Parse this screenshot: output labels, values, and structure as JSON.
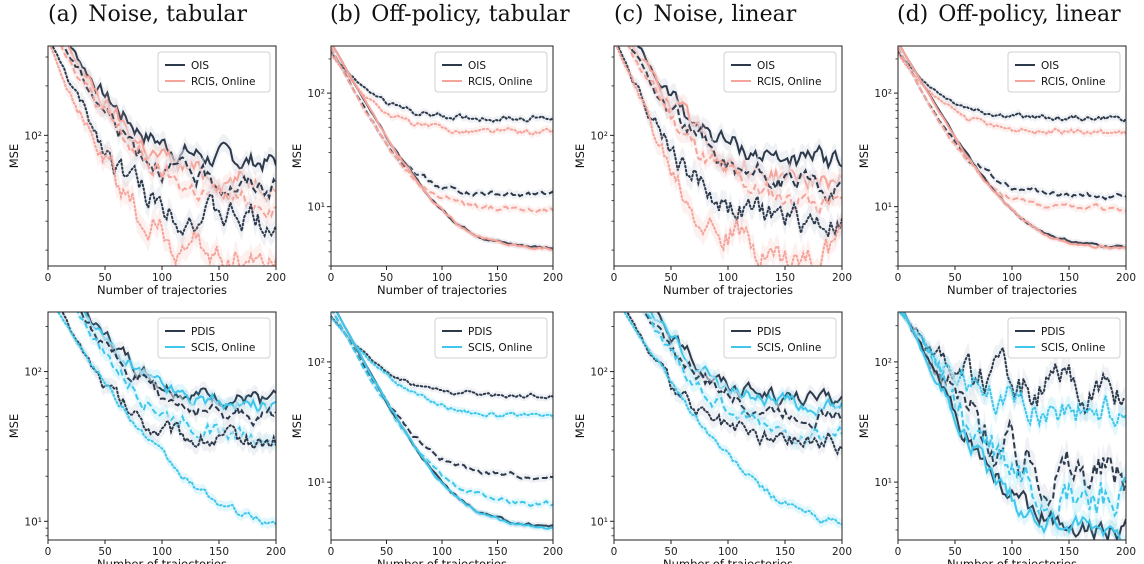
{
  "figure": {
    "columns": [
      {
        "label": "(a)",
        "title": "Noise, tabular"
      },
      {
        "label": "(b)",
        "title": "Off-policy, tabular"
      },
      {
        "label": "(c)",
        "title": "Noise, linear"
      },
      {
        "label": "(d)",
        "title": "Off-policy, linear"
      }
    ]
  },
  "colors": {
    "dark": "#2d3a4b",
    "salmon": "#f4a49a",
    "cyan": "#3fc6ea",
    "band": "#e2e6ec"
  },
  "chart_data": [
    {
      "id": "a1",
      "type": "line",
      "scale": "log",
      "xlabel": "Number of trajectories",
      "ylabel": "MSE",
      "xlim": [
        0,
        200
      ],
      "ylim": [
        16,
        350
      ],
      "xticks": [
        0,
        50,
        100,
        150,
        200
      ],
      "xticklabels": [
        "0",
        "50",
        "100",
        "150",
        "200"
      ],
      "yticks": [
        100
      ],
      "yticklabels": [
        "10²"
      ],
      "legend": {
        "position": "top-right",
        "entries": [
          {
            "name": "OIS",
            "color": "dark"
          },
          {
            "name": "RCIS, Online",
            "color": "salmon"
          }
        ]
      },
      "series": [
        {
          "color": "dark",
          "dash": "solid",
          "start": 600,
          "plateau": 68,
          "k": 0.032,
          "noise": 0.05
        },
        {
          "color": "salmon",
          "dash": "solid",
          "start": 560,
          "plateau": 52,
          "k": 0.032,
          "noise": 0.05
        },
        {
          "color": "dark",
          "dash": "dashed",
          "start": 520,
          "plateau": 48,
          "k": 0.032,
          "noise": 0.05
        },
        {
          "color": "salmon",
          "dash": "dashed",
          "start": 500,
          "plateau": 38,
          "k": 0.032,
          "noise": 0.05
        },
        {
          "color": "dark",
          "dash": "dotted",
          "start": 400,
          "plateau": 30,
          "k": 0.038,
          "noise": 0.07
        },
        {
          "color": "salmon",
          "dash": "dotted",
          "start": 380,
          "plateau": 18,
          "k": 0.04,
          "noise": 0.08
        }
      ]
    },
    {
      "id": "b1",
      "type": "line",
      "scale": "log",
      "xlabel": "Number of trajectories",
      "ylabel": "MSE",
      "xlim": [
        0,
        200
      ],
      "ylim": [
        3,
        260
      ],
      "xticks": [
        0,
        50,
        100,
        150,
        200
      ],
      "xticklabels": [
        "0",
        "50",
        "100",
        "150",
        "200"
      ],
      "yticks": [
        10,
        100
      ],
      "yticklabels": [
        "10¹",
        "10²"
      ],
      "legend": {
        "position": "top-right",
        "entries": [
          {
            "name": "OIS",
            "color": "dark"
          },
          {
            "name": "RCIS, Online",
            "color": "salmon"
          }
        ]
      },
      "series": [
        {
          "color": "dark",
          "dash": "dotted",
          "start": 230,
          "plateau": 60,
          "k": 0.04,
          "noise": 0.02
        },
        {
          "color": "salmon",
          "dash": "dotted",
          "start": 220,
          "plateau": 45,
          "k": 0.04,
          "noise": 0.02
        },
        {
          "color": "dark",
          "dash": "dashed",
          "start": 250,
          "plateau": 12.5,
          "k": 0.045,
          "noise": 0.02
        },
        {
          "color": "salmon",
          "dash": "dashed",
          "start": 250,
          "plateau": 9.5,
          "k": 0.045,
          "noise": 0.02
        },
        {
          "color": "dark",
          "dash": "solid",
          "start": 280,
          "plateau": 4.3,
          "k": 0.04,
          "noise": 0.01
        },
        {
          "color": "salmon",
          "dash": "solid",
          "start": 280,
          "plateau": 4.2,
          "k": 0.04,
          "noise": 0.01
        }
      ]
    },
    {
      "id": "c1",
      "type": "line",
      "scale": "log",
      "xlabel": "Number of trajectories",
      "ylabel": "MSE",
      "xlim": [
        0,
        200
      ],
      "ylim": [
        16,
        350
      ],
      "xticks": [
        0,
        50,
        100,
        150,
        200
      ],
      "xticklabels": [
        "0",
        "50",
        "100",
        "150",
        "200"
      ],
      "yticks": [
        100
      ],
      "yticklabels": [
        "10²"
      ],
      "legend": {
        "position": "top-right",
        "entries": [
          {
            "name": "OIS",
            "color": "dark"
          },
          {
            "name": "RCIS, Online",
            "color": "salmon"
          }
        ]
      },
      "series": [
        {
          "color": "dark",
          "dash": "solid",
          "start": 600,
          "plateau": 68,
          "k": 0.032,
          "noise": 0.05
        },
        {
          "color": "salmon",
          "dash": "solid",
          "start": 560,
          "plateau": 52,
          "k": 0.032,
          "noise": 0.05
        },
        {
          "color": "dark",
          "dash": "dashed",
          "start": 520,
          "plateau": 48,
          "k": 0.032,
          "noise": 0.05
        },
        {
          "color": "salmon",
          "dash": "dashed",
          "start": 500,
          "plateau": 38,
          "k": 0.032,
          "noise": 0.05
        },
        {
          "color": "dark",
          "dash": "dotted",
          "start": 400,
          "plateau": 30,
          "k": 0.038,
          "noise": 0.07
        },
        {
          "color": "salmon",
          "dash": "dotted",
          "start": 380,
          "plateau": 18,
          "k": 0.04,
          "noise": 0.08
        }
      ]
    },
    {
      "id": "d1",
      "type": "line",
      "scale": "log",
      "xlabel": "Number of trajectories",
      "ylabel": "MSE",
      "xlim": [
        0,
        200
      ],
      "ylim": [
        3,
        260
      ],
      "xticks": [
        0,
        50,
        100,
        150,
        200
      ],
      "xticklabels": [
        "0",
        "50",
        "100",
        "150",
        "200"
      ],
      "yticks": [
        10,
        100
      ],
      "yticklabels": [
        "10¹",
        "10²"
      ],
      "legend": {
        "position": "top-right",
        "entries": [
          {
            "name": "OIS",
            "color": "dark"
          },
          {
            "name": "RCIS, Online",
            "color": "salmon"
          }
        ]
      },
      "series": [
        {
          "color": "dark",
          "dash": "dotted",
          "start": 230,
          "plateau": 60,
          "k": 0.04,
          "noise": 0.02
        },
        {
          "color": "salmon",
          "dash": "dotted",
          "start": 220,
          "plateau": 45,
          "k": 0.04,
          "noise": 0.02
        },
        {
          "color": "dark",
          "dash": "dashed",
          "start": 250,
          "plateau": 12.5,
          "k": 0.045,
          "noise": 0.02
        },
        {
          "color": "salmon",
          "dash": "dashed",
          "start": 250,
          "plateau": 9.5,
          "k": 0.045,
          "noise": 0.02
        },
        {
          "color": "dark",
          "dash": "solid",
          "start": 280,
          "plateau": 4.3,
          "k": 0.04,
          "noise": 0.01
        },
        {
          "color": "salmon",
          "dash": "solid",
          "start": 280,
          "plateau": 4.2,
          "k": 0.04,
          "noise": 0.01
        }
      ]
    },
    {
      "id": "a2",
      "type": "line",
      "scale": "log",
      "xlabel": "Number of trajectories",
      "ylabel": "MSE",
      "xlim": [
        0,
        200
      ],
      "ylim": [
        7.5,
        250
      ],
      "xticks": [
        0,
        50,
        100,
        150,
        200
      ],
      "xticklabels": [
        "0",
        "50",
        "100",
        "150",
        "200"
      ],
      "yticks": [
        10,
        100
      ],
      "yticklabels": [
        "10¹",
        "10²"
      ],
      "legend": {
        "position": "top-right",
        "entries": [
          {
            "name": "PDIS",
            "color": "dark"
          },
          {
            "name": "SCIS, Online",
            "color": "cyan"
          }
        ]
      },
      "series": [
        {
          "color": "dark",
          "dash": "solid",
          "start": 650,
          "plateau": 63,
          "k": 0.033,
          "noise": 0.04
        },
        {
          "color": "cyan",
          "dash": "solid",
          "start": 620,
          "plateau": 57,
          "k": 0.033,
          "noise": 0.04
        },
        {
          "color": "dark",
          "dash": "dashed",
          "start": 560,
          "plateau": 50,
          "k": 0.033,
          "noise": 0.04
        },
        {
          "color": "cyan",
          "dash": "dashed",
          "start": 540,
          "plateau": 36,
          "k": 0.033,
          "noise": 0.04
        },
        {
          "color": "dark",
          "dash": "dotted",
          "start": 380,
          "plateau": 34,
          "k": 0.04,
          "noise": 0.05
        },
        {
          "color": "cyan",
          "dash": "dotted",
          "start": 320,
          "plateau": 8.5,
          "k": 0.028,
          "noise": 0.02
        }
      ]
    },
    {
      "id": "b2",
      "type": "line",
      "scale": "log",
      "xlabel": "Number of trajectories",
      "ylabel": "MSE",
      "xlim": [
        0,
        200
      ],
      "ylim": [
        3.3,
        260
      ],
      "xticks": [
        0,
        50,
        100,
        150,
        200
      ],
      "xticklabels": [
        "0",
        "50",
        "100",
        "150",
        "200"
      ],
      "yticks": [
        10,
        100
      ],
      "yticklabels": [
        "10¹",
        "10²"
      ],
      "legend": {
        "position": "top-right",
        "entries": [
          {
            "name": "PDIS",
            "color": "dark"
          },
          {
            "name": "SCIS, Online",
            "color": "cyan"
          }
        ]
      },
      "series": [
        {
          "color": "dark",
          "dash": "dotted",
          "start": 240,
          "plateau": 52,
          "k": 0.035,
          "noise": 0.015
        },
        {
          "color": "cyan",
          "dash": "dotted",
          "start": 235,
          "plateau": 34,
          "k": 0.03,
          "noise": 0.015
        },
        {
          "color": "dark",
          "dash": "dashed",
          "start": 280,
          "plateau": 11,
          "k": 0.04,
          "noise": 0.015
        },
        {
          "color": "cyan",
          "dash": "dashed",
          "start": 280,
          "plateau": 6.5,
          "k": 0.04,
          "noise": 0.015
        },
        {
          "color": "dark",
          "dash": "solid",
          "start": 320,
          "plateau": 4.2,
          "k": 0.04,
          "noise": 0.01
        },
        {
          "color": "cyan",
          "dash": "solid",
          "start": 320,
          "plateau": 4.1,
          "k": 0.04,
          "noise": 0.01
        }
      ]
    },
    {
      "id": "c2",
      "type": "line",
      "scale": "log",
      "xlabel": "Number of trajectories",
      "ylabel": "MSE",
      "xlim": [
        0,
        200
      ],
      "ylim": [
        7.5,
        250
      ],
      "xticks": [
        0,
        50,
        100,
        150,
        200
      ],
      "xticklabels": [
        "0",
        "50",
        "100",
        "150",
        "200"
      ],
      "yticks": [
        10,
        100
      ],
      "yticklabels": [
        "10¹",
        "10²"
      ],
      "legend": {
        "position": "top-right",
        "entries": [
          {
            "name": "PDIS",
            "color": "dark"
          },
          {
            "name": "SCIS, Online",
            "color": "cyan"
          }
        ]
      },
      "series": [
        {
          "color": "dark",
          "dash": "solid",
          "start": 650,
          "plateau": 63,
          "k": 0.033,
          "noise": 0.04
        },
        {
          "color": "cyan",
          "dash": "solid",
          "start": 620,
          "plateau": 57,
          "k": 0.033,
          "noise": 0.04
        },
        {
          "color": "dark",
          "dash": "dashed",
          "start": 560,
          "plateau": 50,
          "k": 0.033,
          "noise": 0.04
        },
        {
          "color": "cyan",
          "dash": "dashed",
          "start": 540,
          "plateau": 36,
          "k": 0.033,
          "noise": 0.04
        },
        {
          "color": "dark",
          "dash": "dotted",
          "start": 380,
          "plateau": 34,
          "k": 0.04,
          "noise": 0.05
        },
        {
          "color": "cyan",
          "dash": "dotted",
          "start": 320,
          "plateau": 8.5,
          "k": 0.028,
          "noise": 0.02
        }
      ]
    },
    {
      "id": "d2",
      "type": "line",
      "scale": "log",
      "xlabel": "Number of trajectories",
      "ylabel": "MSE",
      "xlim": [
        0,
        200
      ],
      "ylim": [
        3.3,
        260
      ],
      "xticks": [
        0,
        50,
        100,
        150,
        200
      ],
      "xticklabels": [
        "0",
        "50",
        "100",
        "150",
        "200"
      ],
      "yticks": [
        10,
        100
      ],
      "yticklabels": [
        "10¹",
        "10²"
      ],
      "legend": {
        "position": "top-right",
        "entries": [
          {
            "name": "PDIS",
            "color": "dark"
          },
          {
            "name": "SCIS, Online",
            "color": "cyan"
          }
        ]
      },
      "series": [
        {
          "color": "dark",
          "dash": "dotted",
          "start": 280,
          "plateau": 58,
          "k": 0.035,
          "noise": 0.12
        },
        {
          "color": "cyan",
          "dash": "dotted",
          "start": 270,
          "plateau": 40,
          "k": 0.035,
          "noise": 0.1
        },
        {
          "color": "dark",
          "dash": "dashed",
          "start": 300,
          "plateau": 11,
          "k": 0.04,
          "noise": 0.15
        },
        {
          "color": "cyan",
          "dash": "dashed",
          "start": 300,
          "plateau": 7,
          "k": 0.04,
          "noise": 0.15
        },
        {
          "color": "dark",
          "dash": "solid",
          "start": 320,
          "plateau": 4.2,
          "k": 0.045,
          "noise": 0.07
        },
        {
          "color": "cyan",
          "dash": "solid",
          "start": 320,
          "plateau": 4.0,
          "k": 0.045,
          "noise": 0.07
        }
      ]
    }
  ]
}
